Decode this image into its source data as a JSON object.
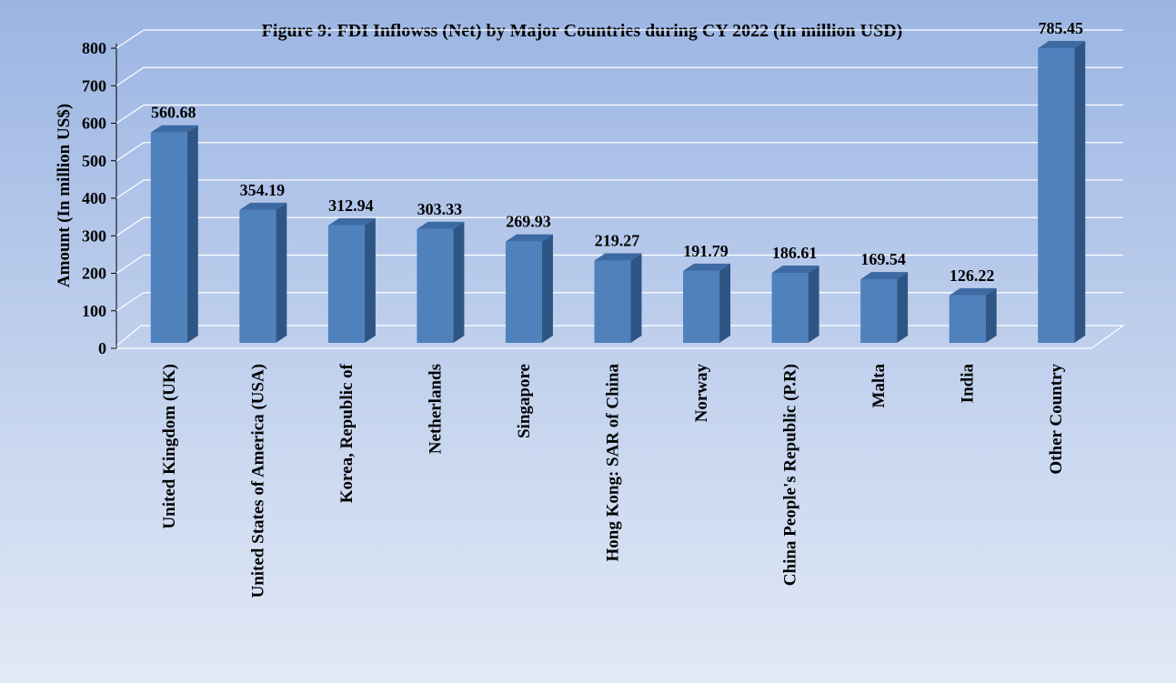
{
  "chart_data": {
    "type": "bar3d",
    "title": "Figure 9: FDI Inflowss (Net) by Major Countries during CY 2022 (In million USD)",
    "y_axis_label": "Amount (In million US$)",
    "categories": [
      "United Kingdom (UK)",
      "United States of America (USA)",
      "Korea, Republic of",
      "Netherlands",
      "Singapore",
      "Hong Kong: SAR of China",
      "Norway",
      "China People's Republic (P.R)",
      "Malta",
      "India",
      "Other Country"
    ],
    "values": [
      560.68,
      354.19,
      312.94,
      303.33,
      269.93,
      219.27,
      191.79,
      186.61,
      169.54,
      126.22,
      785.45
    ],
    "color": "#4f81bd",
    "ylim": [
      0,
      800
    ],
    "yticks": [
      0,
      100,
      200,
      300,
      400,
      500,
      600,
      700,
      800
    ],
    "grid": true
  }
}
